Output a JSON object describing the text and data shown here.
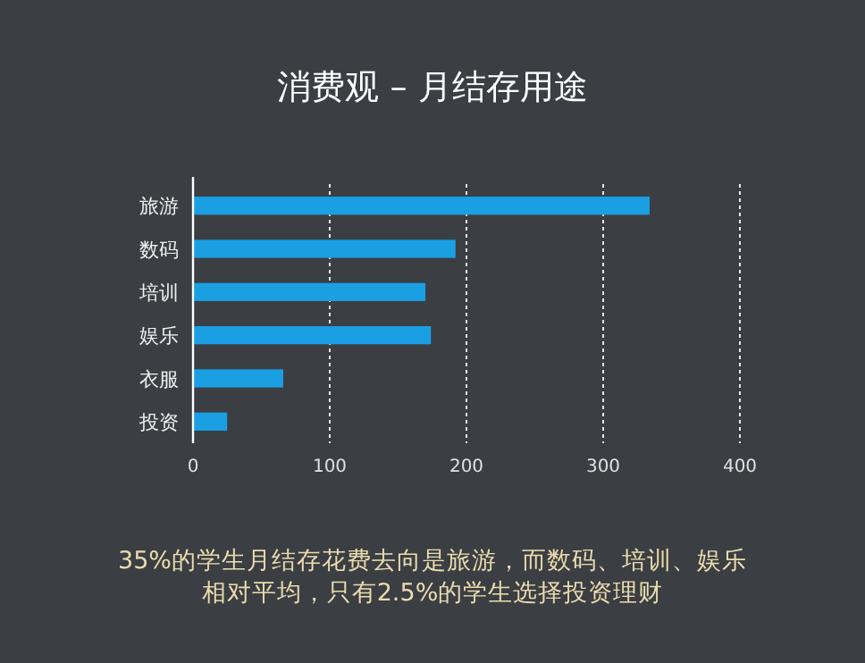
{
  "chart_data": {
    "type": "bar",
    "orientation": "horizontal",
    "title": "消费观 – 月结存用途",
    "categories": [
      "旅游",
      "数码",
      "培训",
      "娱乐",
      "衣服",
      "投资"
    ],
    "values": [
      334,
      192,
      170,
      174,
      66,
      25
    ],
    "color": "#1a9fe2",
    "xlim": [
      0,
      400
    ],
    "xticks": [
      0,
      100,
      200,
      300,
      400
    ],
    "grid": "x",
    "annotations": [
      "35%的学生月结存花费去向是旅游，而数码、培训、娱乐",
      "相对平均，只有2.5%的学生选择投资理财"
    ]
  }
}
